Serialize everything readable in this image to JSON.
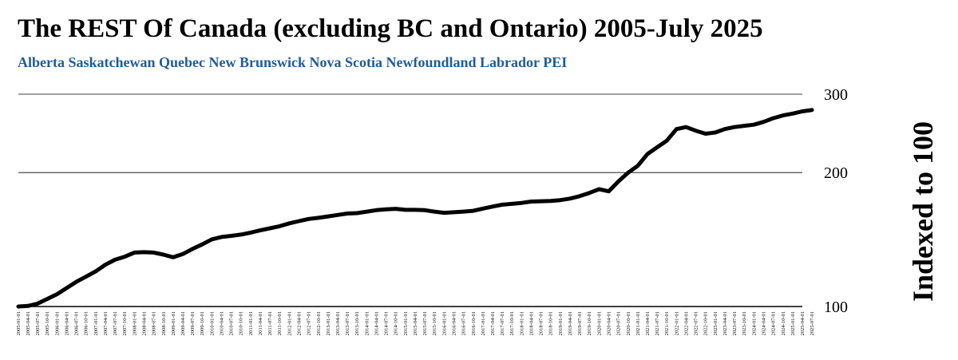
{
  "chart_data": {
    "type": "line",
    "title": "The REST Of Canada (excluding BC and Ontario) 2005-July 2025",
    "subtitle": "Alberta Saskatchewan Quebec New Brunswick Nova Scotia Newfoundland Labrador PEI",
    "ylabel": "Indexed to 100",
    "xlabel": "",
    "y_scale": "log",
    "ylim": [
      100,
      300
    ],
    "y_ticks": [
      100,
      200,
      300
    ],
    "grid": "horizontal",
    "legend": "none",
    "line_color": "#000000",
    "x_tick_labels": [
      "2005-01-01",
      "2005-04-01",
      "2005-07-01",
      "2005-10-01",
      "2006-01-01",
      "2006-04-01",
      "2006-07-01",
      "2006-10-01",
      "2007-01-01",
      "2007-04-01",
      "2007-07-01",
      "2007-10-01",
      "2008-01-01",
      "2008-04-01",
      "2008-07-01",
      "2008-10-01",
      "2009-01-01",
      "2009-04-01",
      "2009-07-01",
      "2009-10-01",
      "2010-01-01",
      "2010-04-01",
      "2010-07-01",
      "2010-10-01",
      "2011-01-01",
      "2011-04-01",
      "2011-07-01",
      "2011-10-01",
      "2012-01-01",
      "2012-04-01",
      "2012-07-01",
      "2012-10-01",
      "2013-01-01",
      "2013-04-01",
      "2013-07-01",
      "2013-10-01",
      "2014-01-01",
      "2014-04-01",
      "2014-07-01",
      "2014-10-01",
      "2015-01-01",
      "2015-04-01",
      "2015-07-01",
      "2015-10-01",
      "2016-01-01",
      "2016-04-01",
      "2016-07-01",
      "2016-10-01",
      "2017-01-01",
      "2017-04-01",
      "2017-07-01",
      "2017-10-01",
      "2018-01-01",
      "2018-04-01",
      "2018-07-01",
      "2018-10-01",
      "2019-01-01",
      "2019-04-01",
      "2019-07-01",
      "2019-10-01",
      "2020-01-01",
      "2020-04-01",
      "2020-07-01",
      "2020-10-01",
      "2021-01-01",
      "2021-04-01",
      "2021-07-01",
      "2021-10-01",
      "2022-01-01",
      "2022-04-01",
      "2022-07-01",
      "2022-10-01",
      "2023-01-01",
      "2023-04-01",
      "2023-07-01",
      "2023-10-01",
      "2024-01-01",
      "2024-04-01",
      "2024-07-01",
      "2024-10-01",
      "2025-01-01",
      "2025-04-01",
      "2025-07-01"
    ],
    "series": [
      {
        "x": [
          "2005-01-01",
          "2005-04-01",
          "2005-07-01",
          "2005-10-01",
          "2006-01-01",
          "2006-04-01",
          "2006-07-01",
          "2006-10-01",
          "2007-01-01",
          "2007-04-01",
          "2007-07-01",
          "2007-10-01",
          "2008-01-01",
          "2008-04-01",
          "2008-07-01",
          "2008-10-01",
          "2009-01-01",
          "2009-04-01",
          "2009-07-01",
          "2009-10-01",
          "2010-01-01",
          "2010-04-01",
          "2010-07-01",
          "2010-10-01",
          "2011-01-01",
          "2011-04-01",
          "2011-07-01",
          "2011-10-01",
          "2012-01-01",
          "2012-04-01",
          "2012-07-01",
          "2012-10-01",
          "2013-01-01",
          "2013-04-01",
          "2013-07-01",
          "2013-10-01",
          "2014-01-01",
          "2014-04-01",
          "2014-07-01",
          "2014-10-01",
          "2015-01-01",
          "2015-04-01",
          "2015-07-01",
          "2015-10-01",
          "2016-01-01",
          "2016-04-01",
          "2016-07-01",
          "2016-10-01",
          "2017-01-01",
          "2017-04-01",
          "2017-07-01",
          "2017-10-01",
          "2018-01-01",
          "2018-04-01",
          "2018-07-01",
          "2018-10-01",
          "2019-01-01",
          "2019-04-01",
          "2019-07-01",
          "2019-10-01",
          "2020-01-01",
          "2020-04-01",
          "2020-07-01",
          "2020-10-01",
          "2021-01-01",
          "2021-04-01",
          "2021-07-01",
          "2021-10-01",
          "2022-01-01",
          "2022-04-01",
          "2022-07-01",
          "2022-10-01",
          "2023-01-01",
          "2023-04-01",
          "2023-07-01",
          "2023-10-01",
          "2024-01-01",
          "2024-04-01",
          "2024-07-01",
          "2024-10-01",
          "2025-01-01",
          "2025-04-01",
          "2025-07-01"
        ],
        "y": [
          100.0,
          100.3,
          101.5,
          104.0,
          106.6,
          110.0,
          113.6,
          116.7,
          120.0,
          124.1,
          127.4,
          129.4,
          132.2,
          132.5,
          132.2,
          130.8,
          129.0,
          131.2,
          134.7,
          137.9,
          141.6,
          143.3,
          144.1,
          145.1,
          146.6,
          148.3,
          149.9,
          151.5,
          153.8,
          155.6,
          157.3,
          158.2,
          159.4,
          160.6,
          161.8,
          162.1,
          163.4,
          164.6,
          165.3,
          165.8,
          164.9,
          164.9,
          164.6,
          163.4,
          162.4,
          162.9,
          163.4,
          164.1,
          166.0,
          167.7,
          169.4,
          170.1,
          170.9,
          172.1,
          172.4,
          172.6,
          173.4,
          174.8,
          177.0,
          180.0,
          183.5,
          181.5,
          190.9,
          199.9,
          207.2,
          220.0,
          227.9,
          235.8,
          250.5,
          253.1,
          248.4,
          244.5,
          246.1,
          250.5,
          253.1,
          254.7,
          256.2,
          259.9,
          264.9,
          268.8,
          271.4,
          274.5,
          276.5
        ]
      }
    ]
  }
}
